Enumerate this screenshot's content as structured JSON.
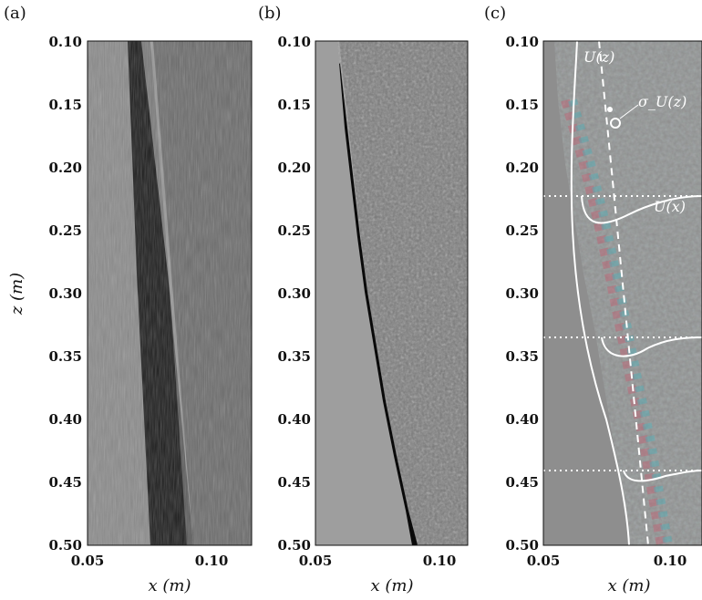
{
  "panels": [
    {
      "label": "(a)",
      "kind": "schlieren-raw"
    },
    {
      "label": "(b)",
      "kind": "schlieren-filtered"
    },
    {
      "label": "(c)",
      "kind": "piv-overlay"
    }
  ],
  "y_axis": {
    "label": "z (m)",
    "ticks": [
      "0.10",
      "0.15",
      "0.20",
      "0.25",
      "0.30",
      "0.35",
      "0.40",
      "0.45",
      "0.50"
    ],
    "range": [
      0.1,
      0.5
    ]
  },
  "x_axis": {
    "label": "x (m)",
    "ticks": [
      "0.05",
      "0.10"
    ],
    "range": [
      0.05,
      0.115
    ]
  },
  "annotations": {
    "uz": "U(z)",
    "sigma": "σ_U(z)",
    "ux": "U(x)"
  },
  "colors": {
    "background": "#ffffff",
    "overlay_line": "#ffffff",
    "gray_field": "#8c8c8c"
  }
}
